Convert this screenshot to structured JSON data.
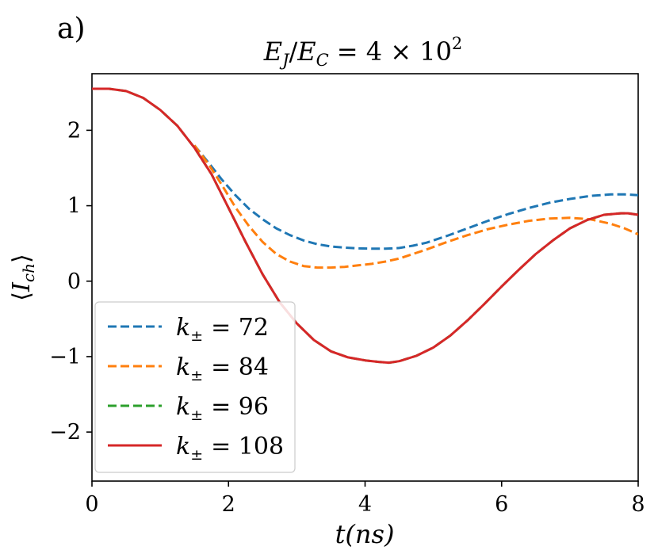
{
  "panel_label": "a)",
  "chart_data": {
    "type": "line",
    "title": "E_J/E_C = 4 × 10^2",
    "title_parts": {
      "lhs_a": "E",
      "sub_a": "J",
      "slash": "/",
      "lhs_b": "E",
      "sub_b": "C",
      "eq": "= 4 × 10",
      "exp": "2"
    },
    "xlabel": "t(ns)",
    "ylabel": "⟨I_ch⟩",
    "ylabel_parts": {
      "open": "⟨",
      "main": "I",
      "sub": "ch",
      "close": "⟩"
    },
    "xlim": [
      0,
      8
    ],
    "ylim": [
      -2.65,
      2.75
    ],
    "xticks": [
      0,
      2,
      4,
      6,
      8
    ],
    "xtick_labels": [
      "0",
      "2",
      "4",
      "6",
      "8"
    ],
    "yticks": [
      -2,
      -1,
      0,
      1,
      2
    ],
    "ytick_labels": [
      "−2",
      "−1",
      "0",
      "1",
      "2"
    ],
    "legend_position": "lower-left",
    "series": [
      {
        "name": "k± = 72",
        "legend_k": "k",
        "legend_sub": "±",
        "legend_rest": "= 72",
        "color": "#1f77b4",
        "style": "dashed",
        "x": [
          1.5,
          1.7,
          1.9,
          2.1,
          2.3,
          2.5,
          2.7,
          2.9,
          3.1,
          3.3,
          3.5,
          3.7,
          3.9,
          4.1,
          4.3,
          4.5,
          4.7,
          4.9,
          5.2,
          5.5,
          5.8,
          6.1,
          6.4,
          6.7,
          7.0,
          7.3,
          7.6,
          7.8,
          8.0
        ],
        "y": [
          1.8,
          1.58,
          1.35,
          1.14,
          0.96,
          0.82,
          0.7,
          0.61,
          0.54,
          0.49,
          0.46,
          0.445,
          0.435,
          0.43,
          0.43,
          0.44,
          0.47,
          0.51,
          0.6,
          0.7,
          0.8,
          0.89,
          0.97,
          1.04,
          1.09,
          1.13,
          1.15,
          1.15,
          1.14
        ]
      },
      {
        "name": "k± = 84",
        "legend_k": "k",
        "legend_sub": "±",
        "legend_rest": "= 84",
        "color": "#ff7f0e",
        "style": "dashed",
        "x": [
          1.5,
          1.7,
          1.9,
          2.1,
          2.3,
          2.5,
          2.7,
          2.9,
          3.1,
          3.3,
          3.5,
          3.7,
          3.9,
          4.1,
          4.3,
          4.5,
          4.7,
          4.9,
          5.2,
          5.5,
          5.8,
          6.1,
          6.4,
          6.7,
          7.0,
          7.3,
          7.6,
          7.8,
          8.0
        ],
        "y": [
          1.8,
          1.56,
          1.28,
          0.98,
          0.73,
          0.52,
          0.36,
          0.26,
          0.2,
          0.18,
          0.18,
          0.19,
          0.21,
          0.23,
          0.26,
          0.3,
          0.36,
          0.42,
          0.52,
          0.61,
          0.69,
          0.75,
          0.8,
          0.83,
          0.84,
          0.82,
          0.76,
          0.7,
          0.62
        ]
      },
      {
        "name": "k± = 96",
        "legend_k": "k",
        "legend_sub": "±",
        "legend_rest": "= 96",
        "color": "#2ca02c",
        "style": "dashed",
        "x": [
          0.0,
          0.25,
          0.5,
          0.75,
          1.0,
          1.25,
          1.5,
          1.75,
          2.0,
          2.25,
          2.5,
          2.75,
          3.0,
          3.25,
          3.5,
          3.75,
          4.0,
          4.2,
          4.35,
          4.5,
          4.75,
          5.0,
          5.25,
          5.5,
          5.75,
          6.0,
          6.25,
          6.5,
          6.75,
          7.0,
          7.25,
          7.5,
          7.75,
          7.85,
          8.0
        ],
        "y": [
          2.55,
          2.55,
          2.52,
          2.43,
          2.27,
          2.06,
          1.77,
          1.42,
          0.97,
          0.52,
          0.09,
          -0.28,
          -0.56,
          -0.78,
          -0.93,
          -1.01,
          -1.05,
          -1.07,
          -1.08,
          -1.06,
          -0.99,
          -0.88,
          -0.72,
          -0.52,
          -0.3,
          -0.07,
          0.15,
          0.36,
          0.54,
          0.7,
          0.81,
          0.88,
          0.9,
          0.9,
          0.88
        ]
      },
      {
        "name": "k± = 108",
        "legend_k": "k",
        "legend_sub": "±",
        "legend_rest": "= 108",
        "color": "#d62728",
        "style": "solid",
        "x": [
          0.0,
          0.25,
          0.5,
          0.75,
          1.0,
          1.25,
          1.5,
          1.75,
          2.0,
          2.25,
          2.5,
          2.75,
          3.0,
          3.25,
          3.5,
          3.75,
          4.0,
          4.2,
          4.35,
          4.5,
          4.75,
          5.0,
          5.25,
          5.5,
          5.75,
          6.0,
          6.25,
          6.5,
          6.75,
          7.0,
          7.25,
          7.5,
          7.75,
          7.85,
          8.0
        ],
        "y": [
          2.55,
          2.55,
          2.52,
          2.43,
          2.27,
          2.06,
          1.77,
          1.42,
          0.97,
          0.52,
          0.09,
          -0.28,
          -0.56,
          -0.78,
          -0.93,
          -1.01,
          -1.05,
          -1.07,
          -1.08,
          -1.06,
          -0.99,
          -0.88,
          -0.72,
          -0.52,
          -0.3,
          -0.07,
          0.15,
          0.36,
          0.54,
          0.7,
          0.81,
          0.88,
          0.9,
          0.9,
          0.88
        ]
      }
    ]
  }
}
